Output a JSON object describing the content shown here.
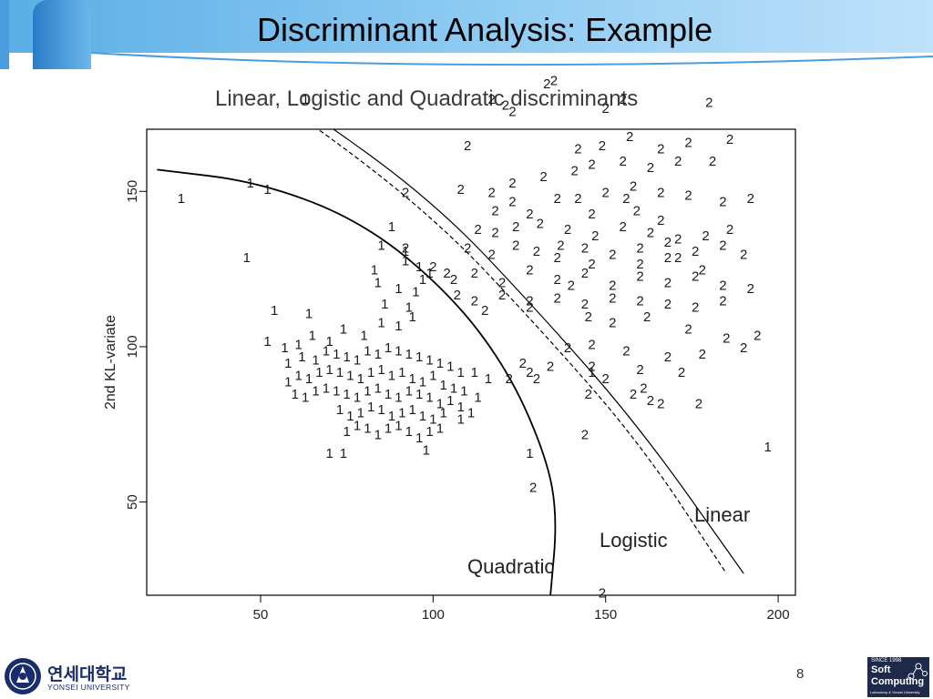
{
  "slide": {
    "title": "Discriminant Analysis: Example",
    "page_number": "8"
  },
  "footer": {
    "university_korean": "연세대학교",
    "university_english": "YONSEI UNIVERSITY",
    "lab_since": "SINCE 1998",
    "lab_line1": "Soft",
    "lab_line2": "Computing",
    "lab_line3": "Laboratory & Yonsei University"
  },
  "colors": {
    "header_band": "#6ab4e8",
    "text": "#000000",
    "lab_logo_bg": "#1f2a4a",
    "university_blue": "#1a2d6b"
  },
  "chart_data": {
    "type": "scatter",
    "title": "Linear, Logistic and Quadratic discriminants",
    "xlabel": "",
    "ylabel": "2nd KL-variate",
    "xlim": [
      17,
      205
    ],
    "ylim": [
      20,
      170
    ],
    "x_ticks": [
      "50",
      "100",
      "150",
      "200"
    ],
    "y_ticks": [
      "50",
      "100",
      "150"
    ],
    "grid": false,
    "legend": "none",
    "series": [
      {
        "marker": "1",
        "points": [
          [
            27,
            148
          ],
          [
            63,
            180
          ],
          [
            47,
            153
          ],
          [
            52,
            151
          ],
          [
            46,
            129
          ],
          [
            88,
            139
          ],
          [
            85,
            133
          ],
          [
            92,
            131
          ],
          [
            84,
            121
          ],
          [
            83,
            125
          ],
          [
            99,
            124
          ],
          [
            92,
            128
          ],
          [
            96,
            126
          ],
          [
            54,
            112
          ],
          [
            64,
            111
          ],
          [
            52,
            102
          ],
          [
            57,
            100
          ],
          [
            61,
            101
          ],
          [
            65,
            104
          ],
          [
            70,
            102
          ],
          [
            74,
            106
          ],
          [
            80,
            104
          ],
          [
            85,
            108
          ],
          [
            90,
            107
          ],
          [
            94,
            110
          ],
          [
            95,
            118
          ],
          [
            97,
            122
          ],
          [
            86,
            114
          ],
          [
            90,
            119
          ],
          [
            93,
            113
          ],
          [
            58,
            95
          ],
          [
            62,
            97
          ],
          [
            66,
            96
          ],
          [
            69,
            99
          ],
          [
            72,
            98
          ],
          [
            75,
            97
          ],
          [
            78,
            96
          ],
          [
            81,
            99
          ],
          [
            84,
            98
          ],
          [
            87,
            100
          ],
          [
            90,
            99
          ],
          [
            93,
            98
          ],
          [
            96,
            97
          ],
          [
            99,
            96
          ],
          [
            102,
            95
          ],
          [
            105,
            94
          ],
          [
            108,
            92
          ],
          [
            112,
            92
          ],
          [
            116,
            90
          ],
          [
            58,
            89
          ],
          [
            61,
            91
          ],
          [
            64,
            90
          ],
          [
            67,
            92
          ],
          [
            70,
            93
          ],
          [
            73,
            92
          ],
          [
            76,
            91
          ],
          [
            79,
            90
          ],
          [
            82,
            92
          ],
          [
            85,
            93
          ],
          [
            88,
            91
          ],
          [
            91,
            92
          ],
          [
            94,
            90
          ],
          [
            97,
            89
          ],
          [
            100,
            91
          ],
          [
            103,
            88
          ],
          [
            106,
            87
          ],
          [
            109,
            86
          ],
          [
            113,
            84
          ],
          [
            60,
            85
          ],
          [
            63,
            84
          ],
          [
            66,
            86
          ],
          [
            69,
            87
          ],
          [
            72,
            86
          ],
          [
            75,
            85
          ],
          [
            78,
            84
          ],
          [
            81,
            86
          ],
          [
            84,
            87
          ],
          [
            87,
            85
          ],
          [
            90,
            84
          ],
          [
            93,
            86
          ],
          [
            96,
            85
          ],
          [
            99,
            84
          ],
          [
            102,
            82
          ],
          [
            105,
            83
          ],
          [
            108,
            81
          ],
          [
            73,
            80
          ],
          [
            76,
            78
          ],
          [
            79,
            79
          ],
          [
            82,
            81
          ],
          [
            85,
            80
          ],
          [
            88,
            78
          ],
          [
            91,
            79
          ],
          [
            94,
            80
          ],
          [
            97,
            78
          ],
          [
            100,
            77
          ],
          [
            103,
            79
          ],
          [
            108,
            77
          ],
          [
            111,
            79
          ],
          [
            75,
            73
          ],
          [
            78,
            75
          ],
          [
            81,
            74
          ],
          [
            84,
            72
          ],
          [
            87,
            74
          ],
          [
            90,
            75
          ],
          [
            93,
            73
          ],
          [
            96,
            71
          ],
          [
            99,
            73
          ],
          [
            102,
            74
          ],
          [
            70,
            66
          ],
          [
            74,
            66
          ],
          [
            98,
            67
          ],
          [
            128,
            66
          ],
          [
            146,
            92
          ],
          [
            197,
            68
          ]
        ]
      },
      {
        "marker": "2",
        "points": [
          [
            135,
            186
          ],
          [
            133,
            185
          ],
          [
            117,
            180
          ],
          [
            121,
            178
          ],
          [
            123,
            176
          ],
          [
            150,
            177
          ],
          [
            155,
            180
          ],
          [
            180,
            179
          ],
          [
            110,
            165
          ],
          [
            142,
            164
          ],
          [
            149,
            165
          ],
          [
            157,
            168
          ],
          [
            166,
            164
          ],
          [
            174,
            166
          ],
          [
            186,
            167
          ],
          [
            92,
            150
          ],
          [
            108,
            151
          ],
          [
            117,
            150
          ],
          [
            123,
            153
          ],
          [
            132,
            155
          ],
          [
            141,
            157
          ],
          [
            146,
            159
          ],
          [
            155,
            160
          ],
          [
            163,
            158
          ],
          [
            171,
            160
          ],
          [
            181,
            160
          ],
          [
            123,
            147
          ],
          [
            118,
            144
          ],
          [
            128,
            143
          ],
          [
            136,
            148
          ],
          [
            150,
            150
          ],
          [
            158,
            152
          ],
          [
            166,
            150
          ],
          [
            174,
            149
          ],
          [
            184,
            147
          ],
          [
            192,
            148
          ],
          [
            113,
            138
          ],
          [
            118,
            137
          ],
          [
            124,
            139
          ],
          [
            131,
            140
          ],
          [
            139,
            138
          ],
          [
            147,
            136
          ],
          [
            155,
            139
          ],
          [
            163,
            137
          ],
          [
            171,
            135
          ],
          [
            179,
            136
          ],
          [
            186,
            138
          ],
          [
            110,
            132
          ],
          [
            117,
            130
          ],
          [
            124,
            133
          ],
          [
            130,
            131
          ],
          [
            137,
            133
          ],
          [
            144,
            132
          ],
          [
            152,
            130
          ],
          [
            160,
            132
          ],
          [
            168,
            129
          ],
          [
            176,
            131
          ],
          [
            184,
            133
          ],
          [
            190,
            130
          ],
          [
            106,
            122
          ],
          [
            112,
            124
          ],
          [
            120,
            121
          ],
          [
            128,
            125
          ],
          [
            136,
            122
          ],
          [
            144,
            124
          ],
          [
            152,
            120
          ],
          [
            160,
            123
          ],
          [
            168,
            121
          ],
          [
            176,
            123
          ],
          [
            184,
            120
          ],
          [
            192,
            119
          ],
          [
            112,
            115
          ],
          [
            120,
            117
          ],
          [
            128,
            115
          ],
          [
            136,
            116
          ],
          [
            144,
            114
          ],
          [
            152,
            116
          ],
          [
            160,
            115
          ],
          [
            168,
            114
          ],
          [
            176,
            113
          ],
          [
            184,
            115
          ],
          [
            92,
            132
          ],
          [
            100,
            126
          ],
          [
            104,
            124
          ],
          [
            107,
            117
          ],
          [
            115,
            112
          ],
          [
            128,
            113
          ],
          [
            145,
            110
          ],
          [
            152,
            108
          ],
          [
            162,
            110
          ],
          [
            174,
            106
          ],
          [
            185,
            103
          ],
          [
            194,
            104
          ],
          [
            139,
            100
          ],
          [
            146,
            101
          ],
          [
            156,
            99
          ],
          [
            168,
            97
          ],
          [
            178,
            98
          ],
          [
            190,
            100
          ],
          [
            126,
            95
          ],
          [
            134,
            94
          ],
          [
            146,
            94
          ],
          [
            160,
            93
          ],
          [
            172,
            92
          ],
          [
            150,
            90
          ],
          [
            161,
            87
          ],
          [
            122,
            90
          ],
          [
            128,
            92
          ],
          [
            130,
            90
          ],
          [
            145,
            85
          ],
          [
            158,
            85
          ],
          [
            163,
            83
          ],
          [
            166,
            82
          ],
          [
            177,
            82
          ],
          [
            144,
            72
          ],
          [
            129,
            55
          ],
          [
            149,
            21
          ],
          [
            142,
            148
          ],
          [
            146,
            143
          ],
          [
            156,
            148
          ],
          [
            159,
            144
          ],
          [
            166,
            141
          ],
          [
            168,
            134
          ],
          [
            171,
            129
          ],
          [
            178,
            125
          ],
          [
            136,
            129
          ],
          [
            160,
            127
          ],
          [
            140,
            120
          ],
          [
            146,
            127
          ]
        ]
      }
    ],
    "boundaries": [
      {
        "label": "Linear",
        "line_style": "solid",
        "points": [
          [
            40,
            192
          ],
          [
            60,
            179
          ],
          [
            100,
            147
          ],
          [
            130,
            112
          ],
          [
            160,
            74
          ],
          [
            190,
            27
          ]
        ]
      },
      {
        "label": "Logistic",
        "line_style": "dashed",
        "points": [
          [
            35,
            192
          ],
          [
            60,
            176
          ],
          [
            100,
            142
          ],
          [
            130,
            107
          ],
          [
            160,
            69
          ],
          [
            185,
            27
          ]
        ]
      },
      {
        "label": "Quadratic",
        "line_style": "solid",
        "points": [
          [
            20,
            157
          ],
          [
            50,
            153
          ],
          [
            80,
            140
          ],
          [
            105,
            117
          ],
          [
            122,
            92
          ],
          [
            133,
            64
          ],
          [
            136,
            45
          ],
          [
            134,
            20
          ]
        ]
      }
    ]
  }
}
